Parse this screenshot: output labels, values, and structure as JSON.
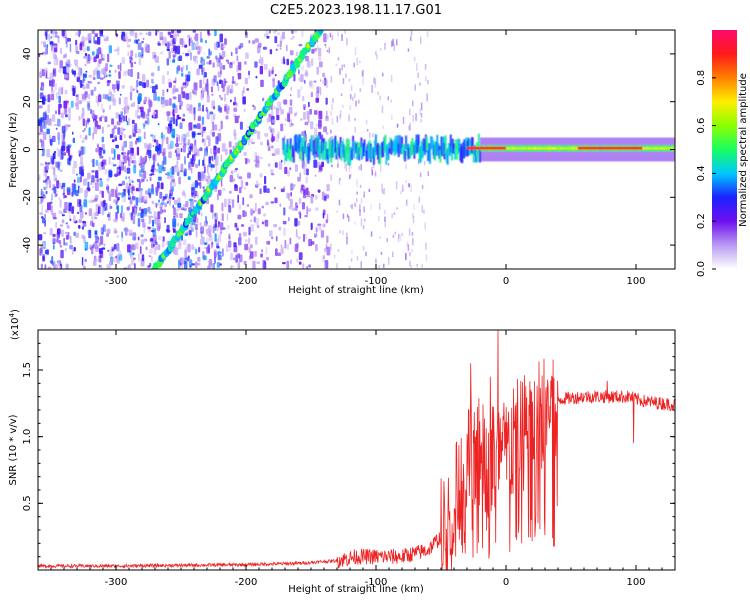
{
  "figure": {
    "title": "C2E5.2023.198.11.17.G01"
  },
  "chart_data": [
    {
      "type": "heatmap",
      "xlabel": "Height of straight line (km)",
      "ylabel": "Frequency (Hz)",
      "xlim": [
        -360,
        130
      ],
      "ylim": [
        -50,
        50
      ],
      "x_ticks": [
        -300,
        -200,
        -100,
        0,
        100
      ],
      "y_ticks": [
        -40,
        -20,
        0,
        20,
        40
      ],
      "colorbar": {
        "label": "Normalized spectral amplitude",
        "range": [
          0,
          1
        ],
        "ticks": [
          0.0,
          0.2,
          0.4,
          0.6,
          0.8
        ],
        "colors": [
          "#ffffff",
          "#b99af2",
          "#6e10f0",
          "#1a22ff",
          "#00c8ff",
          "#18ff60",
          "#8cff00",
          "#ffee00",
          "#ff8000",
          "#ff1a1a",
          "#ff0a6e"
        ]
      },
      "features": {
        "diagonal_track": {
          "from": [
            -270,
            -50
          ],
          "to": [
            -143,
            50
          ]
        },
        "center_band": {
          "from": -172,
          "to": 130,
          "frequency": 0
        },
        "strong_segments": [
          [
            -30,
            0
          ],
          [
            55,
            105
          ]
        ]
      }
    },
    {
      "type": "line",
      "xlabel": "Height of straight line (km)",
      "ylabel": "SNR (10 * v/v)",
      "scale_note": "(x10",
      "scale_exp": "4",
      "scale_suffix": ")",
      "xlim": [
        -360,
        130
      ],
      "ylim": [
        0,
        1.8
      ],
      "x_ticks": [
        -300,
        -200,
        -100,
        0,
        100
      ],
      "y_ticks": [
        0.5,
        1.0,
        1.5
      ],
      "series_color": "#ee2222",
      "series": [
        {
          "x": [
            -360,
            -300,
            -250,
            -200,
            -160,
            -130,
            -115,
            -100,
            -80,
            -60,
            -45,
            -35,
            -25,
            -15,
            -8,
            0,
            5,
            10,
            20,
            30,
            40,
            60,
            80,
            95,
            100,
            110,
            120,
            130
          ],
          "values": [
            0.03,
            0.03,
            0.035,
            0.04,
            0.05,
            0.07,
            0.1,
            0.1,
            0.1,
            0.15,
            0.3,
            0.65,
            0.9,
            0.8,
            0.85,
            0.85,
            0.95,
            1.0,
            1.1,
            1.2,
            1.28,
            1.3,
            1.3,
            1.3,
            1.28,
            1.26,
            1.25,
            1.24
          ]
        }
      ],
      "spikes": [
        {
          "x": -27,
          "value": 1.55
        },
        {
          "x": -12,
          "value": 1.45
        },
        {
          "x": -6,
          "value": 1.8
        },
        {
          "x": 78,
          "value": 1.42
        },
        {
          "x": 98,
          "value": 0.95
        },
        {
          "x": 12,
          "value": 0.2
        }
      ]
    }
  ]
}
